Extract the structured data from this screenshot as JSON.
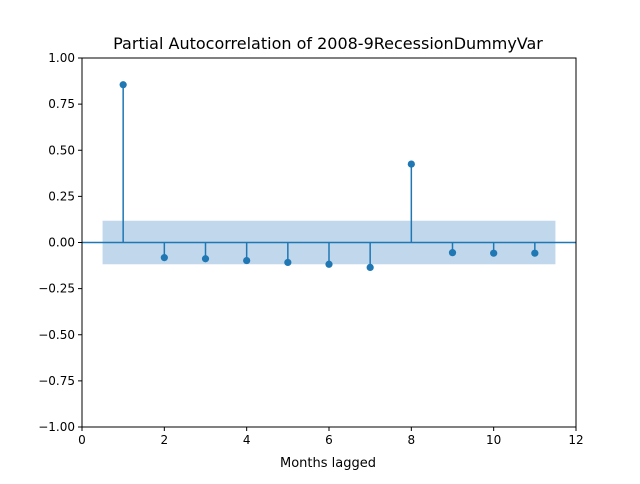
{
  "chart_data": {
    "type": "stem",
    "title": "Partial Autocorrelation of 2008-9RecessionDummyVar",
    "xlabel": "Months lagged",
    "ylabel": "",
    "xlim": [
      0,
      12
    ],
    "ylim": [
      -1.0,
      1.0
    ],
    "xticks": [
      0,
      2,
      4,
      6,
      8,
      10,
      12
    ],
    "xtick_labels": [
      "0",
      "2",
      "4",
      "6",
      "8",
      "10",
      "12"
    ],
    "yticks": [
      1.0,
      0.75,
      0.5,
      0.25,
      0.0,
      -0.25,
      -0.5,
      -0.75,
      -1.0
    ],
    "ytick_labels": [
      "1.00",
      "0.75",
      "0.50",
      "0.25",
      "0.00",
      "−0.25",
      "−0.50",
      "−0.75",
      "−1.00"
    ],
    "x": [
      1,
      2,
      3,
      4,
      5,
      6,
      7,
      8,
      9,
      10,
      11
    ],
    "values": [
      0.855,
      -0.082,
      -0.088,
      -0.098,
      -0.108,
      -0.118,
      -0.135,
      0.425,
      -0.055,
      -0.058,
      -0.058
    ],
    "confidence_band": {
      "x_range": [
        0.5,
        11.5
      ],
      "lower": -0.118,
      "upper": 0.118
    },
    "grid": false,
    "colors": {
      "series": "#1f77b4",
      "band": "#c1d7eb",
      "axis": "#000000"
    }
  }
}
